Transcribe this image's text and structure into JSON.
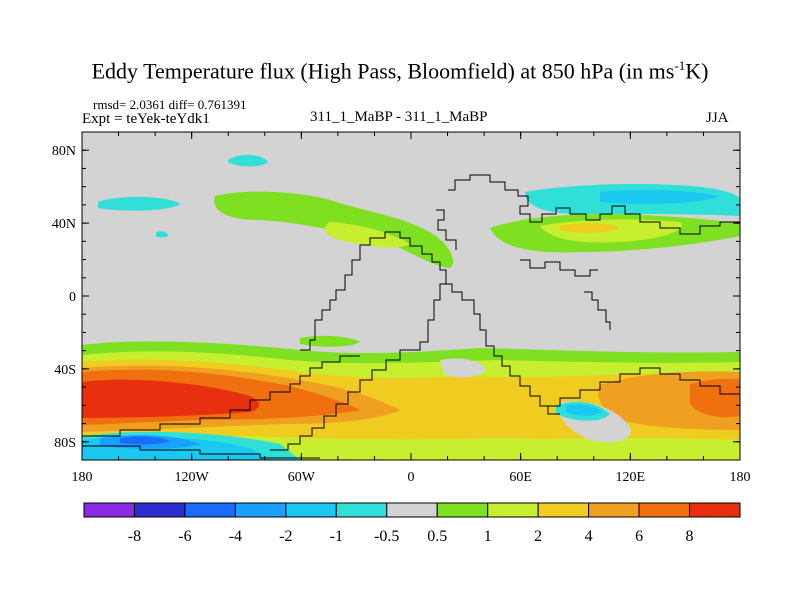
{
  "title": {
    "main": "Eddy Temperature flux (High Pass, Bloomfield) at 850 hPa (in ms",
    "sup": "-1",
    "tail": "K)"
  },
  "stats": {
    "rmsd_line": "rmsd= 2.0361 diff= 0.761391"
  },
  "expt_label": "Expt = teYek-teYdk1",
  "center_label": "311_1_MaBP - 311_1_MaBP",
  "season": "JJA",
  "chart_data": {
    "type": "filled-contour-map",
    "title": "Eddy Temperature flux (High Pass, Bloomfield) at 850 hPa (in ms-1K)",
    "variable": "eddy temperature flux difference",
    "units": "ms-1K",
    "projection": "cylindrical equidistant",
    "xlim": [
      -180,
      180
    ],
    "ylim": [
      -90,
      90
    ],
    "x_ticks": [
      {
        "value": -180,
        "label": "180"
      },
      {
        "value": -120,
        "label": "120W"
      },
      {
        "value": -60,
        "label": "60W"
      },
      {
        "value": 0,
        "label": "0"
      },
      {
        "value": 60,
        "label": "60E"
      },
      {
        "value": 120,
        "label": "120E"
      },
      {
        "value": 180,
        "label": "180"
      }
    ],
    "y_ticks": [
      {
        "value": 80,
        "label": "80N"
      },
      {
        "value": 40,
        "label": "40N"
      },
      {
        "value": 0,
        "label": "0"
      },
      {
        "value": -40,
        "label": "40S"
      },
      {
        "value": -80,
        "label": "80S"
      }
    ],
    "contour_levels": [
      "-8",
      "-6",
      "-4",
      "-2",
      "-1",
      "-0.5",
      "0.5",
      "1",
      "2",
      "4",
      "6",
      "8"
    ],
    "colorbar_colors": [
      "#8a2be2",
      "#2b2bd0",
      "#1a6cff",
      "#1aa0ff",
      "#1ac8f0",
      "#30e0d8",
      "#d3d3d3",
      "#7ee020",
      "#c8ee30",
      "#f0cc20",
      "#f0a020",
      "#f07010",
      "#e83010"
    ],
    "regions": [
      {
        "name": "southern-ocean-max",
        "lon": [
          -180,
          -140
        ],
        "lat": [
          -75,
          -55
        ],
        "level_bin": 12
      },
      {
        "name": "south-indian-max",
        "lon": [
          160,
          180
        ],
        "lat": [
          -70,
          -55
        ],
        "level_bin": 12
      },
      {
        "name": "southern-storm-track",
        "lon": [
          -180,
          180
        ],
        "lat": [
          -80,
          -35
        ],
        "level_bin": 10
      },
      {
        "name": "antarctic-coast-negative",
        "lon": [
          -180,
          -100
        ],
        "lat": [
          -88,
          -78
        ],
        "level_bin": 2
      },
      {
        "name": "north-pacific-negative",
        "lon": [
          30,
          180
        ],
        "lat": [
          35,
          55
        ],
        "level_bin": 5
      },
      {
        "name": "north-atlantic-positive",
        "lon": [
          -60,
          10
        ],
        "lat": [
          30,
          45
        ],
        "level_bin": 7
      },
      {
        "name": "south-indian-negative",
        "lon": [
          80,
          110
        ],
        "lat": [
          -70,
          -60
        ],
        "level_bin": 4
      }
    ]
  }
}
